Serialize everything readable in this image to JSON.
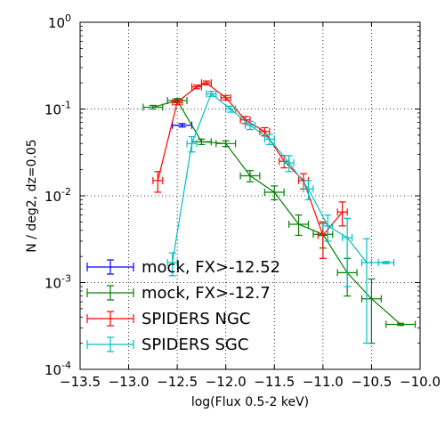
{
  "chart_data": {
    "type": "line",
    "title": "",
    "xlabel": "log(Flux 0.5-2 keV)",
    "ylabel": "N / deg2,  dz=0.05",
    "xlim": [
      -13.5,
      -10.0
    ],
    "ylim": [
      0.0001,
      1
    ],
    "yscale": "log",
    "grid": true,
    "legend_position": "bottom-left",
    "x_ticks": [
      {
        "value": -13.5,
        "label": "−13.5"
      },
      {
        "value": -13.0,
        "label": "−13.0"
      },
      {
        "value": -12.5,
        "label": "−12.5"
      },
      {
        "value": -12.0,
        "label": "−12.0"
      },
      {
        "value": -11.5,
        "label": "−11.5"
      },
      {
        "value": -11.0,
        "label": "−11.0"
      },
      {
        "value": -10.5,
        "label": "−10.5"
      },
      {
        "value": -10.0,
        "label": "−10.0"
      }
    ],
    "y_ticks": [
      {
        "value": 1,
        "base": "10",
        "exp": "0"
      },
      {
        "value": 0.1,
        "base": "10",
        "exp": "-1"
      },
      {
        "value": 0.01,
        "base": "10",
        "exp": "-2"
      },
      {
        "value": 0.001,
        "base": "10",
        "exp": "-3"
      },
      {
        "value": 0.0001,
        "base": "10",
        "exp": "-4"
      }
    ],
    "series": [
      {
        "name": "mock, FX>-12.52",
        "color": "#0000ff",
        "points": [
          {
            "x": -12.45,
            "y": 0.065,
            "xerr": 0.1,
            "ylo": 0.062,
            "yhi": 0.068
          }
        ]
      },
      {
        "name": "mock, FX>-12.7",
        "color": "#008000",
        "points": [
          {
            "x": -12.75,
            "y": 0.105,
            "xerr": 0.1,
            "ylo": 0.1,
            "yhi": 0.11
          },
          {
            "x": -12.5,
            "y": 0.125,
            "xerr": 0.1,
            "ylo": 0.118,
            "yhi": 0.132
          },
          {
            "x": -12.25,
            "y": 0.042,
            "xerr": 0.1,
            "ylo": 0.039,
            "yhi": 0.045
          },
          {
            "x": -12.0,
            "y": 0.04,
            "xerr": 0.1,
            "ylo": 0.037,
            "yhi": 0.043
          },
          {
            "x": -11.75,
            "y": 0.017,
            "xerr": 0.1,
            "ylo": 0.0145,
            "yhi": 0.0195
          },
          {
            "x": -11.5,
            "y": 0.011,
            "xerr": 0.1,
            "ylo": 0.009,
            "yhi": 0.013
          },
          {
            "x": -11.25,
            "y": 0.0047,
            "xerr": 0.1,
            "ylo": 0.0035,
            "yhi": 0.006
          },
          {
            "x": -11.0,
            "y": 0.0036,
            "xerr": 0.1,
            "ylo": 0.0025,
            "yhi": 0.0048
          },
          {
            "x": -10.75,
            "y": 0.0013,
            "xerr": 0.1,
            "ylo": 0.0007,
            "yhi": 0.0019
          },
          {
            "x": -10.5,
            "y": 0.00065,
            "xerr": 0.1,
            "ylo": 0.0002,
            "yhi": 0.0011
          },
          {
            "x": -10.2,
            "y": 0.00033,
            "xerr": 0.15,
            "ylo": 0.00032,
            "yhi": 0.00034
          }
        ]
      },
      {
        "name": "SPIDERS NGC",
        "color": "#ff0000",
        "points": [
          {
            "x": -12.7,
            "y": 0.015,
            "xerr": 0.05,
            "ylo": 0.011,
            "yhi": 0.019
          },
          {
            "x": -12.5,
            "y": 0.12,
            "xerr": 0.05,
            "ylo": 0.112,
            "yhi": 0.128
          },
          {
            "x": -12.3,
            "y": 0.18,
            "xerr": 0.05,
            "ylo": 0.171,
            "yhi": 0.189
          },
          {
            "x": -12.2,
            "y": 0.2,
            "xerr": 0.05,
            "ylo": 0.19,
            "yhi": 0.21
          },
          {
            "x": -12.0,
            "y": 0.135,
            "xerr": 0.05,
            "ylo": 0.127,
            "yhi": 0.143
          },
          {
            "x": -11.8,
            "y": 0.075,
            "xerr": 0.05,
            "ylo": 0.068,
            "yhi": 0.082
          },
          {
            "x": -11.6,
            "y": 0.055,
            "xerr": 0.05,
            "ylo": 0.049,
            "yhi": 0.061
          },
          {
            "x": -11.4,
            "y": 0.025,
            "xerr": 0.05,
            "ylo": 0.021,
            "yhi": 0.029
          },
          {
            "x": -11.2,
            "y": 0.015,
            "xerr": 0.05,
            "ylo": 0.012,
            "yhi": 0.018
          },
          {
            "x": -11.0,
            "y": 0.0035,
            "xerr": 0.05,
            "ylo": 0.0019,
            "yhi": 0.005
          },
          {
            "x": -10.8,
            "y": 0.0065,
            "xerr": 0.05,
            "ylo": 0.0045,
            "yhi": 0.0085
          }
        ]
      },
      {
        "name": "SPIDERS SGC",
        "color": "#00bfbf",
        "points": [
          {
            "x": -12.55,
            "y": 0.0017,
            "xerr": 0.05,
            "ylo": 0.0012,
            "yhi": 0.0022
          },
          {
            "x": -12.35,
            "y": 0.04,
            "xerr": 0.05,
            "ylo": 0.032,
            "yhi": 0.048
          },
          {
            "x": -12.15,
            "y": 0.15,
            "xerr": 0.05,
            "ylo": 0.14,
            "yhi": 0.16
          },
          {
            "x": -11.95,
            "y": 0.1,
            "xerr": 0.05,
            "ylo": 0.092,
            "yhi": 0.108
          },
          {
            "x": -11.75,
            "y": 0.065,
            "xerr": 0.05,
            "ylo": 0.058,
            "yhi": 0.072
          },
          {
            "x": -11.55,
            "y": 0.045,
            "xerr": 0.05,
            "ylo": 0.039,
            "yhi": 0.051
          },
          {
            "x": -11.35,
            "y": 0.024,
            "xerr": 0.05,
            "ylo": 0.019,
            "yhi": 0.029
          },
          {
            "x": -11.15,
            "y": 0.012,
            "xerr": 0.05,
            "ylo": 0.009,
            "yhi": 0.015
          },
          {
            "x": -10.95,
            "y": 0.0045,
            "xerr": 0.05,
            "ylo": 0.003,
            "yhi": 0.006
          },
          {
            "x": -10.75,
            "y": 0.0033,
            "xerr": 0.05,
            "ylo": 0.0009,
            "yhi": 0.0055
          },
          {
            "x": -10.55,
            "y": 0.0017,
            "xerr": 0.05,
            "ylo": 0.0002,
            "yhi": 0.0032
          },
          {
            "x": -10.35,
            "y": 0.0017,
            "xerr": 0.08,
            "ylo": 0.00165,
            "yhi": 0.00175
          }
        ]
      }
    ]
  }
}
